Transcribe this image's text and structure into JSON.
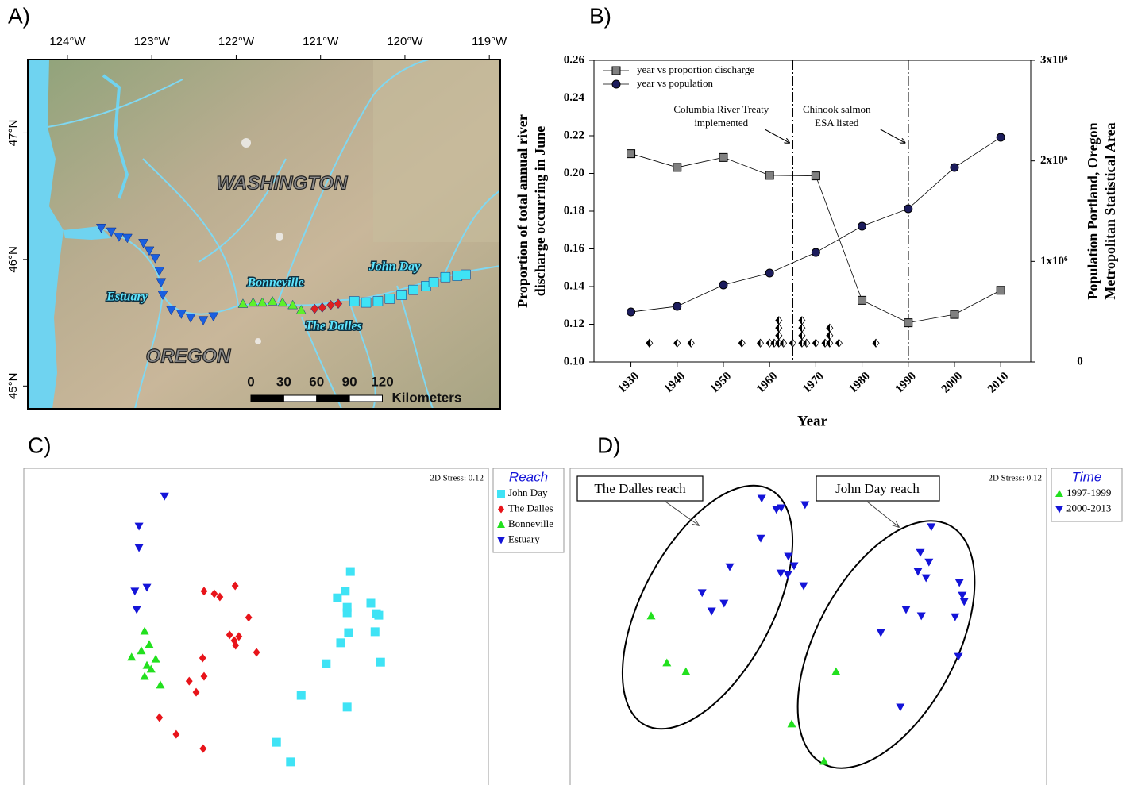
{
  "chart_data": [
    {
      "type": "map",
      "panel": "A)",
      "xlim": [
        -124.47,
        -118.87
      ],
      "ylim": [
        44.82,
        47.58
      ],
      "xticks": [
        {
          "value": -124,
          "label": "124°W"
        },
        {
          "value": -123,
          "label": "123°W"
        },
        {
          "value": -122,
          "label": "122°W"
        },
        {
          "value": -121,
          "label": "121°W"
        },
        {
          "value": -120,
          "label": "120°W"
        },
        {
          "value": -119,
          "label": "119°W"
        }
      ],
      "yticks": [
        {
          "value": 45,
          "label": "45°N"
        },
        {
          "value": 46,
          "label": "46°N"
        },
        {
          "value": 47,
          "label": "47°N"
        }
      ],
      "regions": [
        "WASHINGTON",
        "OREGON"
      ],
      "series": [
        {
          "name": "Estuary",
          "color": "#1a5fe0",
          "marker": "triangle-down",
          "x": [
            -123.6,
            -123.48,
            -123.39,
            -123.29,
            -123.1,
            -123.03,
            -122.96,
            -122.91,
            -122.89,
            -122.87,
            -122.77,
            -122.65,
            -122.54,
            -122.39,
            -122.27
          ],
          "y": [
            46.25,
            46.22,
            46.18,
            46.17,
            46.13,
            46.07,
            46.01,
            45.91,
            45.82,
            45.72,
            45.6,
            45.57,
            45.54,
            45.52,
            45.55
          ]
        },
        {
          "name": "Bonneville",
          "color": "#5ef02a",
          "marker": "triangle-up",
          "x": [
            -121.92,
            -121.8,
            -121.69,
            -121.57,
            -121.45,
            -121.33,
            -121.23
          ],
          "y": [
            45.65,
            45.66,
            45.66,
            45.67,
            45.66,
            45.64,
            45.6
          ]
        },
        {
          "name": "The Dalles",
          "color": "#e02020",
          "marker": "diamond",
          "x": [
            -121.07,
            -120.98,
            -120.88,
            -120.79
          ],
          "y": [
            45.61,
            45.62,
            45.64,
            45.65
          ]
        },
        {
          "name": "John Day",
          "color": "#3fe3f5",
          "marker": "square",
          "x": [
            -120.6,
            -120.46,
            -120.32,
            -120.18,
            -120.04,
            -119.9,
            -119.75,
            -119.66,
            -119.52,
            -119.38,
            -119.28
          ],
          "y": [
            45.67,
            45.66,
            45.67,
            45.69,
            45.72,
            45.76,
            45.79,
            45.82,
            45.86,
            45.87,
            45.88
          ]
        }
      ],
      "scale_ticks": [
        0,
        30,
        60,
        90,
        120
      ],
      "scale_unit": "Kilometers"
    },
    {
      "type": "line",
      "panel": "B)",
      "xlabel": "Year",
      "ylabel": [
        "Proportion of total annual river",
        "discharge occurring in June"
      ],
      "y2label": [
        "Population Portland, Oregon",
        "Metropolitan Statistical Area"
      ],
      "xlim": [
        1922,
        2016.5
      ],
      "xticks": [
        1930,
        1940,
        1950,
        1960,
        1970,
        1980,
        1990,
        2000,
        2010
      ],
      "ylim": [
        0.1,
        0.26
      ],
      "yticks": [
        {
          "value": 0.1,
          "label": "0.10"
        },
        0.12,
        0.14,
        0.16,
        0.18,
        {
          "value": 0.2,
          "label": "0.20"
        },
        0.22,
        0.24,
        0.26
      ],
      "y2lim": [
        0,
        3000000
      ],
      "y2ticks": [
        0,
        {
          "value": 1000000,
          "label": "1x10⁶"
        },
        {
          "value": 2000000,
          "label": "2x10⁶"
        },
        {
          "value": 3000000,
          "label": "3x10⁶"
        }
      ],
      "series": [
        {
          "name": "year vs proportion discharge",
          "color": "#808080",
          "marker": "square",
          "x": [
            1930,
            1940,
            1950,
            1960,
            1970,
            1980,
            1990,
            2000,
            2010
          ],
          "values": [
            0.2105,
            0.2032,
            0.2085,
            0.199,
            0.1987,
            0.1327,
            0.1208,
            0.1252,
            0.138
          ]
        },
        {
          "name": "year vs population",
          "color": "#1c1c5c",
          "marker": "circle",
          "axis": "y2",
          "x": [
            1930,
            1940,
            1950,
            1960,
            1970,
            1980,
            1990,
            2000,
            2010
          ],
          "values": [
            497000,
            553000,
            766000,
            884000,
            1089000,
            1350000,
            1524000,
            1934000,
            2234000
          ]
        }
      ],
      "events": {
        "marker": "diamond-half",
        "x": [
          1934,
          1940,
          1943,
          1954,
          1958,
          1960,
          1961,
          1962,
          1962,
          1962,
          1962,
          1963,
          1965,
          1967,
          1967,
          1967,
          1967,
          1968,
          1970,
          1972,
          1973,
          1973,
          1973,
          1975,
          1983
        ]
      },
      "vlines": [
        {
          "x": 1965,
          "text": [
            "Columbia River Treaty",
            "implemented"
          ]
        },
        {
          "x": 1990,
          "text": [
            "Chinook salmon",
            "ESA listed"
          ]
        }
      ],
      "legend": "upper left"
    },
    {
      "type": "scatter",
      "panel": "C)",
      "annotation": "2D Stress: 0.12",
      "legend_title": "Reach",
      "xlim": [
        0,
        100
      ],
      "ylim": [
        0,
        100
      ],
      "series": [
        {
          "name": "John Day",
          "color": "#3fe3f5",
          "marker": "square",
          "x": [
            70.3,
            69.2,
            67.5,
            69.6,
            74.7,
            75.9,
            69.6,
            76.4,
            69.9,
            75.6,
            68.2,
            65.1,
            76.8,
            59.7,
            69.6,
            54.4,
            57.4
          ],
          "y": [
            67.4,
            61.2,
            59.1,
            56.1,
            57.4,
            54.1,
            54.4,
            53.6,
            48.1,
            48.4,
            44.9,
            38.3,
            38.8,
            28.3,
            24.6,
            13.5,
            7.3
          ]
        },
        {
          "name": "The Dalles",
          "color": "#e8141a",
          "marker": "diamond",
          "x": [
            45.5,
            38.8,
            41.0,
            42.2,
            48.4,
            44.3,
            46.3,
            45.3,
            45.6,
            50.1,
            38.5,
            38.8,
            35.6,
            37.1,
            29.2,
            32.8,
            38.6
          ],
          "y": [
            62.9,
            61.2,
            60.4,
            59.4,
            52.9,
            47.4,
            46.9,
            45.6,
            44.1,
            41.9,
            40.1,
            34.3,
            32.8,
            29.3,
            21.3,
            16.0,
            11.5
          ]
        },
        {
          "name": "Bonneville",
          "color": "#22e01e",
          "marker": "triangle-up",
          "x": [
            26.0,
            27.0,
            23.2,
            28.4,
            26.5,
            27.4,
            26.0,
            29.4,
            25.3
          ],
          "y": [
            48.6,
            44.4,
            40.4,
            39.8,
            37.8,
            36.6,
            34.3,
            31.6,
            42.4
          ]
        },
        {
          "name": "Estuary",
          "color": "#1414d8",
          "marker": "triangle-down",
          "x": [
            30.3,
            24.8,
            24.8,
            26.5,
            23.9,
            24.3
          ],
          "y": [
            91.2,
            81.7,
            74.9,
            62.4,
            61.2,
            55.4
          ]
        }
      ]
    },
    {
      "type": "scatter",
      "panel": "D)",
      "annotation": "2D Stress: 0.12",
      "legend_title": "Time",
      "callouts": [
        "The Dalles reach",
        "John Day reach"
      ],
      "xlim": [
        0,
        100
      ],
      "ylim": [
        0,
        100
      ],
      "series": [
        {
          "name": "1997-1999",
          "color": "#22e01e",
          "marker": "triangle-up",
          "x": [
            17.0,
            20.3,
            24.3,
            55.8,
            46.5,
            53.3
          ],
          "y": [
            53.4,
            38.6,
            35.8,
            35.8,
            19.3,
            7.5
          ]
        },
        {
          "name": "2000-2013",
          "color": "#1414d8",
          "marker": "triangle-down",
          "x": [
            40.2,
            44.3,
            43.3,
            49.3,
            40.0,
            45.8,
            33.5,
            47.0,
            44.2,
            45.7,
            49.0,
            27.7,
            32.3,
            29.7,
            75.8,
            73.5,
            75.3,
            73.0,
            74.7,
            81.7,
            82.3,
            82.7,
            70.5,
            73.7,
            80.8,
            65.2,
            81.5,
            69.3
          ],
          "y": [
            90.5,
            87.5,
            87.0,
            88.5,
            77.9,
            72.2,
            68.9,
            69.2,
            66.9,
            66.4,
            62.9,
            60.7,
            57.4,
            54.9,
            81.5,
            73.4,
            70.4,
            67.4,
            65.4,
            63.9,
            59.9,
            57.9,
            55.4,
            53.4,
            53.1,
            48.1,
            40.6,
            24.6
          ]
        }
      ]
    }
  ]
}
